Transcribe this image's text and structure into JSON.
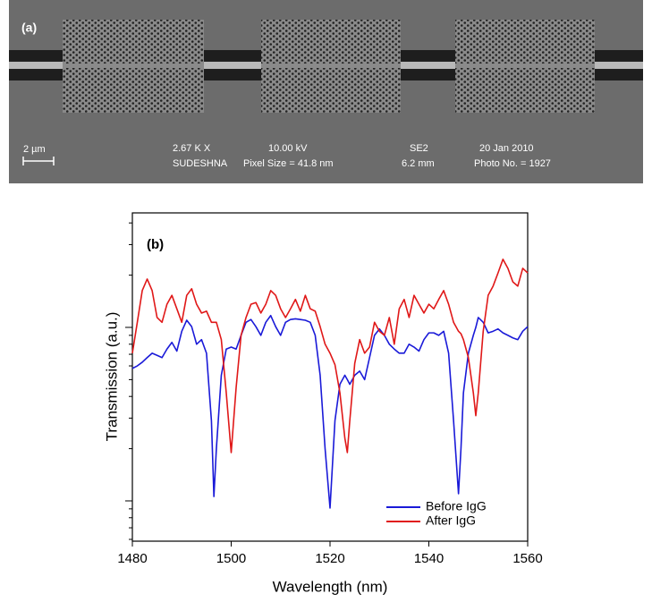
{
  "panel_a": {
    "label": "(a)",
    "scale_bar": "2 µm",
    "magnification": "2.67 K X",
    "operator": "SUDESHNA",
    "voltage": "10.00 kV",
    "pixel_size": "Pixel Size = 41.8 nm",
    "detector": "SE2",
    "working_distance": "6.2 mm",
    "date": "20 Jan 2010",
    "photo": "Photo No. = 1927"
  },
  "chart_data": {
    "type": "line",
    "panel_label": "(b)",
    "xlabel": "Wavelength (nm)",
    "ylabel": "Transmission (a.u.)",
    "yscale": "log",
    "y_tick_labels": false,
    "xlim": [
      1480,
      1560
    ],
    "xticks": [
      1480,
      1500,
      1520,
      1540,
      1560
    ],
    "ylim": [
      0.0586,
      4.57
    ],
    "yticks": [
      0.1,
      1
    ],
    "yminor_ticks": [
      0.06,
      0.07,
      0.08,
      0.09,
      0.2,
      0.3,
      0.4,
      0.5,
      0.6,
      0.7,
      0.8,
      0.9,
      2,
      3,
      4
    ],
    "legend": "lower right",
    "x": [
      1480,
      1481,
      1482,
      1483,
      1484,
      1485,
      1486,
      1487,
      1488,
      1489,
      1490,
      1491,
      1492,
      1493,
      1494,
      1495,
      1496,
      1496.5,
      1497,
      1498,
      1499,
      1500,
      1501,
      1502,
      1503,
      1504,
      1505,
      1506,
      1507,
      1508,
      1509,
      1510,
      1511,
      1512,
      1513,
      1514,
      1515,
      1516,
      1517,
      1518,
      1519,
      1520,
      1521,
      1522,
      1523,
      1523.5,
      1524,
      1525,
      1526,
      1527,
      1528,
      1529,
      1530,
      1531,
      1532,
      1533,
      1534,
      1535,
      1536,
      1537,
      1538,
      1539,
      1540,
      1541,
      1542,
      1543,
      1544,
      1545,
      1546,
      1546.5,
      1547,
      1548,
      1549,
      1549.5,
      1550,
      1551,
      1552,
      1553,
      1554,
      1555,
      1556,
      1557,
      1558,
      1559,
      1560
    ],
    "series": [
      {
        "name": "Before IgG",
        "color": "#1a1ad8",
        "values": [
          0.58,
          0.6,
          0.63,
          0.67,
          0.71,
          0.69,
          0.67,
          0.75,
          0.82,
          0.73,
          0.95,
          1.1,
          1.01,
          0.8,
          0.85,
          0.71,
          0.29,
          0.106,
          0.2,
          0.53,
          0.75,
          0.77,
          0.75,
          0.9,
          1.07,
          1.11,
          1.01,
          0.9,
          1.07,
          1.17,
          1.01,
          0.9,
          1.07,
          1.11,
          1.12,
          1.11,
          1.1,
          1.07,
          0.9,
          0.53,
          0.2,
          0.091,
          0.29,
          0.47,
          0.53,
          0.5,
          0.47,
          0.53,
          0.56,
          0.5,
          0.67,
          0.9,
          0.98,
          0.9,
          0.8,
          0.75,
          0.71,
          0.71,
          0.8,
          0.77,
          0.73,
          0.85,
          0.93,
          0.93,
          0.9,
          0.95,
          0.71,
          0.29,
          0.11,
          0.2,
          0.42,
          0.71,
          0.9,
          1.0,
          1.14,
          1.07,
          0.93,
          0.95,
          0.98,
          0.93,
          0.9,
          0.87,
          0.85,
          0.95,
          1.01
        ]
      },
      {
        "name": "After IgG",
        "color": "#e01818",
        "values": [
          0.71,
          1.07,
          1.63,
          1.9,
          1.63,
          1.14,
          1.07,
          1.36,
          1.53,
          1.28,
          1.07,
          1.53,
          1.67,
          1.36,
          1.21,
          1.24,
          1.07,
          1.07,
          1.07,
          0.85,
          0.42,
          0.19,
          0.45,
          0.9,
          1.14,
          1.36,
          1.39,
          1.21,
          1.36,
          1.63,
          1.53,
          1.28,
          1.14,
          1.28,
          1.45,
          1.24,
          1.53,
          1.28,
          1.24,
          1.01,
          0.8,
          0.71,
          0.61,
          0.42,
          0.23,
          0.19,
          0.29,
          0.62,
          0.85,
          0.71,
          0.77,
          1.07,
          0.95,
          0.9,
          1.14,
          0.8,
          1.28,
          1.45,
          1.14,
          1.53,
          1.36,
          1.21,
          1.36,
          1.28,
          1.45,
          1.63,
          1.36,
          1.07,
          0.95,
          0.92,
          0.85,
          0.67,
          0.42,
          0.31,
          0.42,
          0.95,
          1.53,
          1.73,
          2.06,
          2.47,
          2.19,
          1.83,
          1.73,
          2.19,
          2.06
        ]
      }
    ]
  }
}
